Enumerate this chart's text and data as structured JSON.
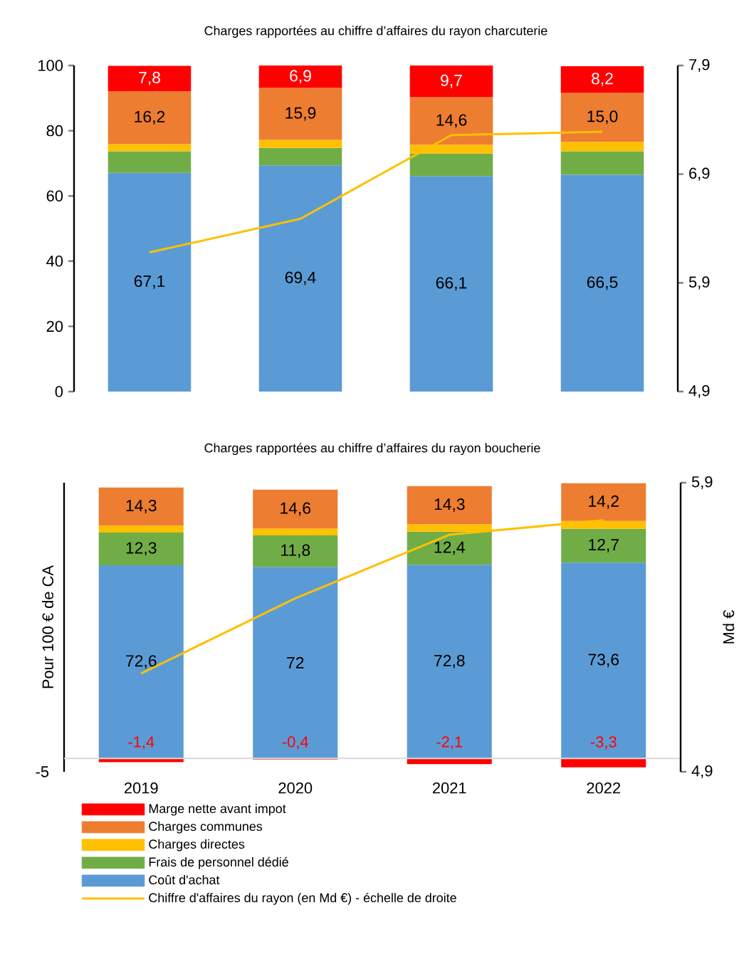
{
  "chart_data": [
    {
      "type": "bar",
      "title": "Charges rapportées au chiffre d’affaires du rayon charcuterie",
      "categories": [
        "2019",
        "2020",
        "2021",
        "2022"
      ],
      "stacked": true,
      "ylim": [
        0,
        100
      ],
      "yticks": [
        0,
        20,
        40,
        60,
        80,
        100
      ],
      "y2lim": [
        4.9,
        7.9
      ],
      "y2ticks": [
        {
          "value": 4.9,
          "label": "4,9"
        },
        {
          "value": 5.9,
          "label": "5,9"
        },
        {
          "value": 6.9,
          "label": "6,9"
        },
        {
          "value": 7.9,
          "label": "7,9"
        }
      ],
      "tick_labels": "y",
      "legend": false,
      "marker": "none",
      "line_style": "solid",
      "series": [
        {
          "color": "#5b9bd5",
          "values": [
            67.1,
            69.4,
            66.1,
            66.5
          ],
          "value_labels": [
            "67,1",
            "69,4",
            "66,1",
            "66,5"
          ]
        },
        {
          "color": "#70ad47",
          "values": [
            6.6,
            5.3,
            6.9,
            7.2
          ]
        },
        {
          "color": "#ffc000",
          "values": [
            2.2,
            2.5,
            2.7,
            2.9
          ]
        },
        {
          "color": "#ed7d31",
          "values": [
            16.2,
            15.9,
            14.6,
            15.0
          ],
          "value_labels": [
            "16,2",
            "15,9",
            "14,6",
            "15,0"
          ]
        },
        {
          "color": "#ff0000",
          "values": [
            7.8,
            6.9,
            9.7,
            8.2
          ],
          "value_labels": [
            "7,8",
            "6,9",
            "9,7",
            "8,2"
          ]
        },
        {
          "type": "line",
          "axis": "y2",
          "color": "#ffc000",
          "values": [
            6.18,
            6.49,
            7.26,
            7.29
          ]
        }
      ]
    },
    {
      "type": "bar",
      "title": "Charges rapportées au chiffre d’affaires du rayon boucherie",
      "ylabel": "Pour 100 € de CA",
      "y2label": "Md €",
      "categories": [
        "2019",
        "2020",
        "2021",
        "2022"
      ],
      "stacked": true,
      "annotations": [
        "-5"
      ],
      "y2lim": [
        4.9,
        5.9
      ],
      "y2ticks": [
        {
          "value": 4.9,
          "label": "4,9"
        },
        {
          "value": 5.9,
          "label": "5,9"
        }
      ],
      "legend": "bottom",
      "marker": "none",
      "line_style": "solid",
      "series": [
        {
          "name": "Coût d'achat",
          "color": "#5b9bd5",
          "values": [
            72.6,
            72,
            72.8,
            73.6
          ],
          "value_labels": [
            "72,6",
            "72",
            "72,8",
            "73,6"
          ]
        },
        {
          "name": "Frais de personnel dédié",
          "color": "#70ad47",
          "values": [
            12.3,
            11.8,
            12.4,
            12.7
          ],
          "value_labels": [
            "12,3",
            "11,8",
            "12,4",
            "12,7"
          ]
        },
        {
          "name": "Charges directes",
          "color": "#ffc000",
          "values": [
            2.6,
            2.6,
            2.8,
            2.9
          ]
        },
        {
          "name": "Charges communes",
          "color": "#ed7d31",
          "values": [
            14.3,
            14.6,
            14.3,
            14.2
          ],
          "value_labels": [
            "14,3",
            "14,6",
            "14,3",
            "14,2"
          ]
        },
        {
          "name": "Marge nette avant impot",
          "color": "#ff0000",
          "values": [
            -1.4,
            -0.4,
            -2.1,
            -3.3
          ],
          "value_labels": [
            "-1,4",
            "-0,4",
            "-2,1",
            "-3,3"
          ]
        },
        {
          "name": "Chiffre d'affaires du rayon (en Md €) - échelle de droite",
          "type": "line",
          "axis": "y2",
          "color": "#ffc000",
          "values": [
            5.24,
            5.5,
            5.72,
            5.77
          ]
        }
      ]
    }
  ]
}
